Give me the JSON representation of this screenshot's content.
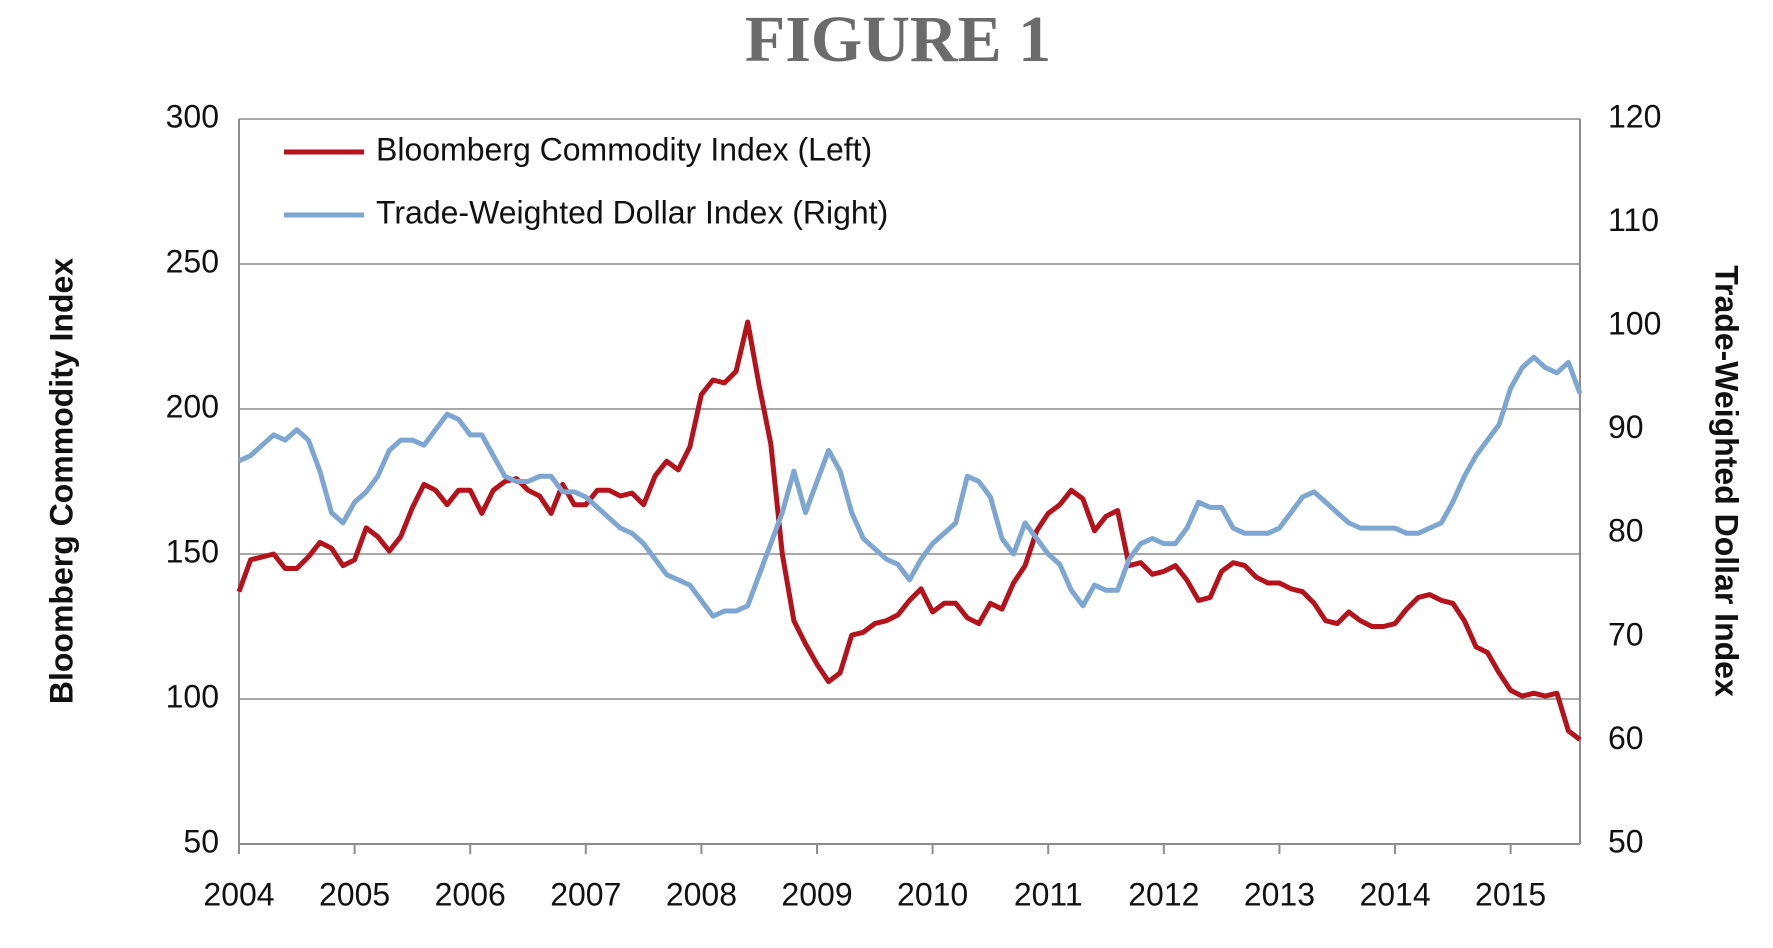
{
  "chart_data": {
    "type": "line",
    "title": "FIGURE 1",
    "ylabel": "Bloomberg Commodity Index",
    "y2label": "Trade-Weighted Dollar Index",
    "x": [
      2004,
      2004.1,
      2004.2,
      2004.3,
      2004.4,
      2004.5,
      2004.6,
      2004.7,
      2004.8,
      2004.9,
      2005,
      2005.1,
      2005.2,
      2005.3,
      2005.4,
      2005.5,
      2005.6,
      2005.7,
      2005.8,
      2005.9,
      2006,
      2006.1,
      2006.2,
      2006.3,
      2006.4,
      2006.5,
      2006.6,
      2006.7,
      2006.8,
      2006.9,
      2007,
      2007.1,
      2007.2,
      2007.3,
      2007.4,
      2007.5,
      2007.6,
      2007.7,
      2007.8,
      2007.9,
      2008,
      2008.1,
      2008.2,
      2008.3,
      2008.4,
      2008.5,
      2008.6,
      2008.7,
      2008.8,
      2008.9,
      2009,
      2009.1,
      2009.2,
      2009.3,
      2009.4,
      2009.5,
      2009.6,
      2009.7,
      2009.8,
      2009.9,
      2010,
      2010.1,
      2010.2,
      2010.3,
      2010.4,
      2010.5,
      2010.6,
      2010.7,
      2010.8,
      2010.9,
      2011,
      2011.1,
      2011.2,
      2011.3,
      2011.4,
      2011.5,
      2011.6,
      2011.7,
      2011.8,
      2011.9,
      2012,
      2012.1,
      2012.2,
      2012.3,
      2012.4,
      2012.5,
      2012.6,
      2012.7,
      2012.8,
      2012.9,
      2013,
      2013.1,
      2013.2,
      2013.3,
      2013.4,
      2013.5,
      2013.6,
      2013.7,
      2013.8,
      2013.9,
      2014,
      2014.1,
      2014.2,
      2014.3,
      2014.4,
      2014.5,
      2014.6,
      2014.7,
      2014.8,
      2014.9,
      2015,
      2015.1,
      2015.2,
      2015.3,
      2015.4,
      2015.5,
      2015.6
    ],
    "series": [
      {
        "name": "Bloomberg Commodity Index (Left)",
        "color": "#b5121b",
        "axis": "y",
        "values": [
          137,
          148,
          149,
          150,
          145,
          145,
          149,
          154,
          152,
          146,
          148,
          159,
          156,
          151,
          156,
          166,
          174,
          172,
          167,
          172,
          172,
          164,
          172,
          175,
          176,
          172,
          170,
          164,
          174,
          167,
          167,
          172,
          172,
          170,
          171,
          167,
          177,
          182,
          179,
          187,
          205,
          210,
          209,
          213,
          230,
          208,
          188,
          150,
          127,
          119,
          112,
          106,
          109,
          122,
          123,
          126,
          127,
          129,
          134,
          138,
          130,
          133,
          133,
          128,
          126,
          133,
          131,
          140,
          146,
          158,
          164,
          167,
          172,
          169,
          158,
          163,
          165,
          146,
          147,
          143,
          144,
          146,
          141,
          134,
          135,
          144,
          147,
          146,
          142,
          140,
          140,
          138,
          137,
          133,
          127,
          126,
          130,
          127,
          125,
          125,
          126,
          131,
          135,
          136,
          134,
          133,
          127,
          118,
          116,
          109,
          103,
          101,
          102,
          101,
          102,
          89,
          86
        ]
      },
      {
        "name": "Trade-Weighted Dollar Index (Right)",
        "color": "#7ea6d3",
        "axis": "y2",
        "values": [
          87,
          87.5,
          88.5,
          89.5,
          89,
          90,
          89,
          86,
          82,
          81,
          83,
          84,
          85.5,
          88,
          89,
          89,
          88.5,
          90,
          91.5,
          91,
          89.5,
          89.5,
          87.5,
          85.5,
          85,
          85,
          85.5,
          85.5,
          84,
          84,
          83.5,
          82.5,
          81.5,
          80.5,
          80,
          79,
          77.5,
          76,
          75.5,
          75,
          73.5,
          72,
          72.5,
          72.5,
          73,
          76,
          79,
          82,
          86,
          82,
          85,
          88,
          86,
          82,
          79.5,
          78.5,
          77.5,
          77,
          75.5,
          77.5,
          79,
          80,
          81,
          85.5,
          85,
          83.5,
          79.5,
          78,
          81,
          79.5,
          78,
          77,
          74.5,
          73,
          75,
          74.5,
          74.5,
          77.5,
          79,
          79.5,
          79,
          79,
          80.5,
          83,
          82.5,
          82.5,
          80.5,
          80,
          80,
          80,
          80.5,
          82,
          83.5,
          84,
          83,
          82,
          81,
          80.5,
          80.5,
          80.5,
          80.5,
          80,
          80,
          80.5,
          81,
          83,
          85.5,
          87.5,
          89,
          90.5,
          94,
          96,
          97,
          96,
          95.5,
          96.5,
          93.5
        ]
      }
    ],
    "xlim": [
      2004,
      2015.6
    ],
    "xticks": [
      2004,
      2005,
      2006,
      2007,
      2008,
      2009,
      2010,
      2011,
      2012,
      2013,
      2014,
      2015
    ],
    "ylim": [
      50,
      300
    ],
    "yticks": [
      50,
      100,
      150,
      200,
      250,
      300
    ],
    "y2lim": [
      50,
      120
    ],
    "y2ticks": [
      50,
      60,
      70,
      80,
      90,
      100,
      110,
      120
    ],
    "grid": true,
    "legend": "upper left"
  }
}
